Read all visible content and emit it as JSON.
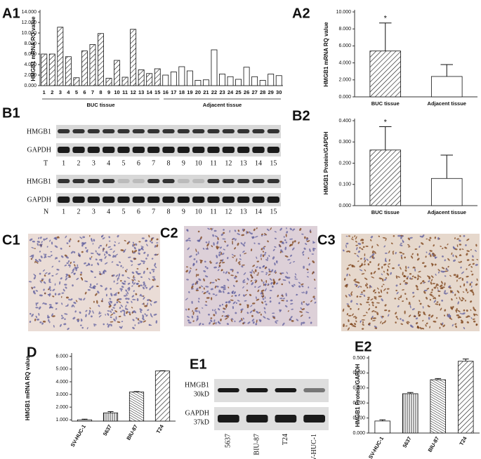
{
  "panels": [
    "A1",
    "A2",
    "B1",
    "B2",
    "C1",
    "C2",
    "C3",
    "D",
    "E1",
    "E2"
  ],
  "blot_b1": {
    "rows": [
      "HMGB1",
      "GAPDH",
      "HMGB1",
      "GAPDH"
    ],
    "row_groups": [
      "T",
      "N"
    ],
    "lanes": [
      "1",
      "2",
      "3",
      "4",
      "5",
      "6",
      "7",
      "8",
      "9",
      "10",
      "11",
      "12",
      "13",
      "14",
      "15"
    ]
  },
  "blot_e1": {
    "rows": [
      {
        "name": "HMGB1",
        "size": "30kD"
      },
      {
        "name": "GAPDH",
        "size": "37kD"
      }
    ],
    "lanes": [
      "5637",
      "BIU-87",
      "T24",
      "SV-HUC-1"
    ]
  },
  "chart_data": [
    {
      "type": "bar",
      "y_label": "HMGB1 mRNA RQ value",
      "categories": [
        "1",
        "2",
        "3",
        "4",
        "5",
        "6",
        "7",
        "8",
        "9",
        "10",
        "11",
        "12",
        "13",
        "14",
        "15",
        "16",
        "17",
        "18",
        "19",
        "20",
        "21",
        "22",
        "23",
        "24",
        "25",
        "26",
        "27",
        "28",
        "29",
        "30"
      ],
      "values": [
        6.0,
        6.0,
        11.1,
        5.5,
        1.5,
        6.6,
        7.8,
        9.9,
        1.4,
        4.8,
        1.6,
        10.7,
        3.0,
        2.3,
        3.2,
        2.0,
        2.6,
        3.6,
        2.8,
        1.0,
        1.1,
        6.8,
        2.2,
        1.7,
        1.2,
        3.5,
        1.7,
        1.0,
        2.2,
        1.9
      ],
      "fills": [
        "diag",
        "diag",
        "diag",
        "diag",
        "diag",
        "diag",
        "diag",
        "diag",
        "diag",
        "diag",
        "diag",
        "diag",
        "diag",
        "diag",
        "diag",
        "none",
        "none",
        "none",
        "none",
        "none",
        "none",
        "none",
        "none",
        "none",
        "none",
        "none",
        "none",
        "none",
        "none",
        "none"
      ],
      "group_labels": [
        "BUC tissue",
        "Adjacent tissue"
      ],
      "ylim": [
        0,
        14
      ],
      "yticks": [
        {
          "value": 0,
          "label": "0.000"
        },
        {
          "value": 2,
          "label": "2.000"
        },
        {
          "value": 4,
          "label": "4.000"
        },
        {
          "value": 6,
          "label": "6.000"
        },
        {
          "value": 8,
          "label": "8.000"
        },
        {
          "value": 10,
          "label": "10.000"
        },
        {
          "value": 12,
          "label": "12.000"
        },
        {
          "value": 14,
          "label": "14.000"
        }
      ]
    },
    {
      "type": "bar",
      "y_label": "HMGB1 mRNA RQ value",
      "categories": [
        "BUC tissue",
        "Adjacent tissue"
      ],
      "values": [
        5.4,
        2.4
      ],
      "errors": [
        3.3,
        1.4
      ],
      "fills": [
        "diag",
        "none"
      ],
      "annotation": "*",
      "ylim": [
        0,
        10
      ],
      "yticks": [
        {
          "value": 0,
          "label": "0.000"
        },
        {
          "value": 2,
          "label": "2.000"
        },
        {
          "value": 4,
          "label": "4.000"
        },
        {
          "value": 6,
          "label": "6.000"
        },
        {
          "value": 8,
          "label": "8.000"
        },
        {
          "value": 10,
          "label": "10.000"
        }
      ]
    },
    {
      "type": "bar",
      "y_label": "HMGB1 Protein/GAPDH",
      "categories": [
        "BUC tissue",
        "Adjacent tissue"
      ],
      "values": [
        0.262,
        0.128
      ],
      "errors": [
        0.11,
        0.11
      ],
      "fills": [
        "diag",
        "none"
      ],
      "annotation": "*",
      "ylim": [
        0,
        0.4
      ],
      "yticks": [
        {
          "value": 0,
          "label": "0.000"
        },
        {
          "value": 0.1,
          "label": "0.100"
        },
        {
          "value": 0.2,
          "label": "0.200"
        },
        {
          "value": 0.3,
          "label": "0.300"
        },
        {
          "value": 0.4,
          "label": "0.400"
        }
      ]
    },
    {
      "type": "bar",
      "y_label": "HMGB1 mRNA RQ value",
      "categories": [
        "SV-HUC-1",
        "5637",
        "BIU-87",
        "T24"
      ],
      "values": [
        1.0,
        1.55,
        3.2,
        4.85
      ],
      "errors": [
        0.05,
        0.1,
        0.03,
        0.02
      ],
      "fills": [
        "none",
        "vert",
        "dense",
        "diag"
      ],
      "ylim": [
        0.9,
        6.1
      ],
      "yticks": [
        {
          "value": 1,
          "label": "1.000"
        },
        {
          "value": 2,
          "label": "2.000"
        },
        {
          "value": 3,
          "label": "3.000"
        },
        {
          "value": 4,
          "label": "4.000"
        },
        {
          "value": 5,
          "label": "5.000"
        },
        {
          "value": 6,
          "label": "6.000"
        }
      ]
    },
    {
      "type": "bar",
      "y_label": "HMGB1 Protein/GAPDH",
      "categories": [
        "SV-HUC-1",
        "5637",
        "BIU-87",
        "T24"
      ],
      "values": [
        0.08,
        0.262,
        0.355,
        0.478
      ],
      "errors": [
        0.008,
        0.008,
        0.008,
        0.015
      ],
      "fills": [
        "none",
        "vert",
        "dense",
        "diag"
      ],
      "ylim": [
        0,
        0.5
      ],
      "yticks": [
        {
          "value": 0,
          "label": "0.000"
        },
        {
          "value": 0.1,
          "label": "0.100"
        },
        {
          "value": 0.2,
          "label": "0.200"
        },
        {
          "value": 0.3,
          "label": "0.300"
        },
        {
          "value": 0.4,
          "label": "0.400"
        },
        {
          "value": 0.5,
          "label": "0.500"
        }
      ]
    }
  ]
}
